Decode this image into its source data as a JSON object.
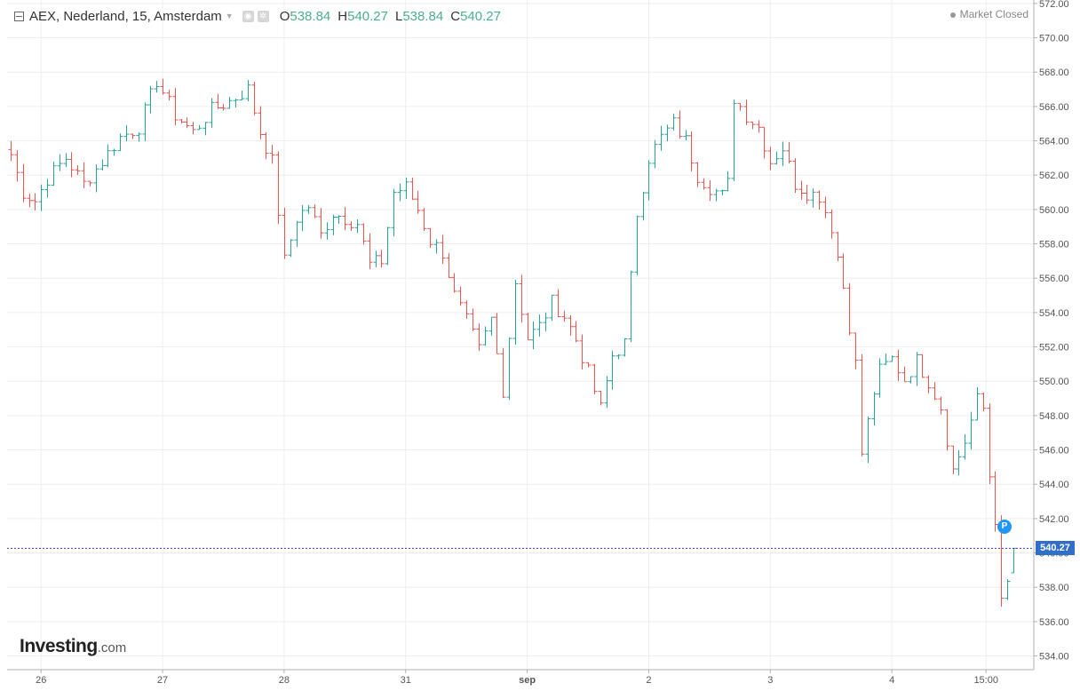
{
  "header": {
    "symbol": "AEX, Nederland, 15, Amsterdam",
    "o_label": "O",
    "o_value": "538.84",
    "h_label": "H",
    "h_value": "540.27",
    "l_label": "L",
    "l_value": "538.84",
    "c_label": "C",
    "c_value": "540.27"
  },
  "market_status": "Market Closed",
  "logo": {
    "main": "Investing",
    "suffix": ".com"
  },
  "price_label": "540.27",
  "marker_label": "P",
  "colors": {
    "up": "#26a69a",
    "down": "#ef5350",
    "price_line": "#2f3bb5",
    "price_label_bg": "#2f6ec9",
    "grid": "#eeeeee",
    "marker": "#2196f3"
  },
  "chart_data": {
    "type": "ohlc",
    "x_ticks": [
      "26",
      "27",
      "28",
      "31",
      "sep",
      "2",
      "3",
      "4",
      "15:00"
    ],
    "y_ticks": [
      "534.00",
      "536.00",
      "538.00",
      "540.00",
      "542.00",
      "544.00",
      "546.00",
      "548.00",
      "550.00",
      "552.00",
      "554.00",
      "556.00",
      "558.00",
      "560.00",
      "562.00",
      "564.00",
      "566.00",
      "568.00",
      "570.00",
      "572.00"
    ],
    "ylim": [
      533.2,
      572.2
    ],
    "current_price": 540.27,
    "last_bar": {
      "open": 538.84,
      "high": 540.27,
      "low": 538.84,
      "close": 540.27
    },
    "close_path": [
      [
        0,
        563.2
      ],
      [
        2,
        561.0
      ],
      [
        4,
        560.5
      ],
      [
        6,
        561.8
      ],
      [
        9,
        563.0
      ],
      [
        12,
        561.5
      ],
      [
        15,
        562.8
      ],
      [
        18,
        564.2
      ],
      [
        21,
        564.8
      ],
      [
        24,
        567.5
      ],
      [
        27,
        565.5
      ],
      [
        30,
        564.5
      ],
      [
        33,
        565.8
      ],
      [
        36,
        566.3
      ],
      [
        39,
        567.0
      ],
      [
        41,
        564.5
      ],
      [
        43,
        562.8
      ],
      [
        45,
        557.0
      ],
      [
        47,
        559.5
      ],
      [
        49,
        560.2
      ],
      [
        51,
        558.5
      ],
      [
        53,
        559.8
      ],
      [
        55,
        559.5
      ],
      [
        57,
        559.2
      ],
      [
        59,
        556.8
      ],
      [
        61,
        557.0
      ],
      [
        63,
        561.0
      ],
      [
        65,
        561.3
      ],
      [
        67,
        560.0
      ],
      [
        69,
        558.2
      ],
      [
        71,
        557.5
      ],
      [
        73,
        555.0
      ],
      [
        75,
        553.5
      ],
      [
        77,
        551.8
      ],
      [
        79,
        553.6
      ],
      [
        81,
        549.5
      ],
      [
        83,
        555.8
      ],
      [
        85,
        552.5
      ],
      [
        87,
        553.2
      ],
      [
        89,
        554.6
      ],
      [
        91,
        553.8
      ],
      [
        93,
        552.4
      ],
      [
        95,
        550.5
      ],
      [
        97,
        548.4
      ],
      [
        99,
        551.5
      ],
      [
        101,
        552.2
      ],
      [
        103,
        559.8
      ],
      [
        105,
        563.0
      ],
      [
        107,
        564.2
      ],
      [
        109,
        565.0
      ],
      [
        111,
        564.0
      ],
      [
        113,
        562.0
      ],
      [
        115,
        561.3
      ],
      [
        117,
        560.8
      ],
      [
        118,
        561.5
      ],
      [
        119,
        566.5
      ],
      [
        121,
        565.5
      ],
      [
        123,
        564.8
      ],
      [
        125,
        562.8
      ],
      [
        127,
        563.6
      ],
      [
        129,
        561.5
      ],
      [
        131,
        561.0
      ],
      [
        133,
        560.8
      ],
      [
        135,
        559.0
      ],
      [
        137,
        555.5
      ],
      [
        139,
        551.0
      ],
      [
        140,
        545.8
      ],
      [
        142,
        549.4
      ],
      [
        143,
        550.6
      ],
      [
        145,
        551.3
      ],
      [
        147,
        550.1
      ],
      [
        149,
        551.2
      ],
      [
        151,
        550.0
      ],
      [
        153,
        548.5
      ],
      [
        155,
        544.8
      ],
      [
        157,
        546.5
      ],
      [
        159,
        548.9
      ],
      [
        160,
        548.4
      ],
      [
        161,
        544.5
      ],
      [
        162,
        542.0
      ],
      [
        163,
        537.0
      ],
      [
        164,
        538.2
      ],
      [
        165,
        539.0
      ]
    ]
  }
}
